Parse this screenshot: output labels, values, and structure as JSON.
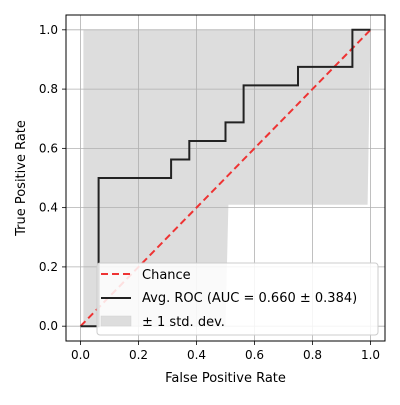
{
  "chart_data": {
    "type": "line",
    "xlabel": "False Positive Rate",
    "ylabel": "True Positive Rate",
    "xlim": [
      -0.05,
      1.05
    ],
    "ylim": [
      -0.05,
      1.05
    ],
    "xticks": [
      0.0,
      0.2,
      0.4,
      0.6,
      0.8,
      1.0
    ],
    "yticks": [
      0.0,
      0.2,
      0.4,
      0.6,
      0.8,
      1.0
    ],
    "xtick_labels": [
      "0.0",
      "0.2",
      "0.4",
      "0.6",
      "0.8",
      "1.0"
    ],
    "ytick_labels": [
      "0.0",
      "0.2",
      "0.4",
      "0.6",
      "0.8",
      "1.0"
    ],
    "grid": true,
    "legend_position": "lower-right",
    "series": [
      {
        "name": "Chance",
        "style": "dashed",
        "color": "#ee3333",
        "x": [
          0,
          1
        ],
        "y": [
          0,
          1
        ]
      },
      {
        "name": "Avg. ROC (AUC = 0.660 ± 0.384)",
        "style": "solid",
        "color": "#222222",
        "x": [
          0,
          0.0625,
          0.0625,
          0.3125,
          0.3125,
          0.375,
          0.375,
          0.5,
          0.5,
          0.5625,
          0.5625,
          0.75,
          0.75,
          0.9375,
          0.9375,
          1.0
        ],
        "y": [
          0,
          0,
          0.5,
          0.5,
          0.5625,
          0.5625,
          0.625,
          0.625,
          0.6875,
          0.6875,
          0.8125,
          0.8125,
          0.875,
          0.875,
          1.0,
          1.0
        ]
      }
    ],
    "band": {
      "name": "± 1 std. dev.",
      "color": "#dddddd",
      "upper": {
        "x": [
          0,
          0.01,
          0.01,
          1.0
        ],
        "y": [
          0,
          0,
          1.0,
          1.0
        ]
      },
      "lower": {
        "x": [
          0,
          0.5,
          0.51,
          0.99,
          1.0
        ],
        "y": [
          0,
          0,
          0.41,
          0.41,
          1.0
        ]
      }
    }
  }
}
